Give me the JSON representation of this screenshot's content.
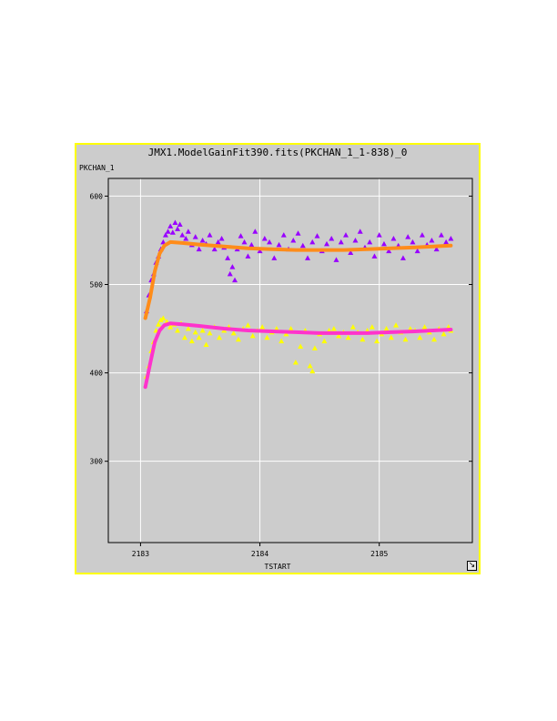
{
  "chart_data": {
    "type": "scatter",
    "title": "JMX1.ModelGainFit390.fits(PKCHAN_1_1-838)_0",
    "ylabel": "PKCHAN_1",
    "xlabel": "TSTART",
    "xlim": [
      2182.73,
      2185.78
    ],
    "ylim": [
      208,
      620
    ],
    "xticks": [
      2183,
      2184,
      2185
    ],
    "yticks": [
      300,
      400,
      500,
      600
    ],
    "grid": true,
    "series": [
      {
        "marker": "triangle",
        "color": "#9900ff",
        "points": [
          [
            2183.05,
            470
          ],
          [
            2183.07,
            488
          ],
          [
            2183.09,
            505
          ],
          [
            2183.11,
            512
          ],
          [
            2183.13,
            525
          ],
          [
            2183.15,
            532
          ],
          [
            2183.17,
            540
          ],
          [
            2183.19,
            548
          ],
          [
            2183.21,
            556
          ],
          [
            2183.23,
            560
          ],
          [
            2183.25,
            566
          ],
          [
            2183.27,
            559
          ],
          [
            2183.29,
            570
          ],
          [
            2183.31,
            563
          ],
          [
            2183.33,
            568
          ],
          [
            2183.35,
            556
          ],
          [
            2183.38,
            552
          ],
          [
            2183.4,
            560
          ],
          [
            2183.43,
            545
          ],
          [
            2183.46,
            554
          ],
          [
            2183.49,
            540
          ],
          [
            2183.52,
            550
          ],
          [
            2183.55,
            546
          ],
          [
            2183.58,
            556
          ],
          [
            2183.62,
            540
          ],
          [
            2183.65,
            548
          ],
          [
            2183.68,
            552
          ],
          [
            2183.7,
            542
          ],
          [
            2183.73,
            530
          ],
          [
            2183.75,
            512
          ],
          [
            2183.77,
            520
          ],
          [
            2183.79,
            505
          ],
          [
            2183.81,
            540
          ],
          [
            2183.84,
            555
          ],
          [
            2183.87,
            548
          ],
          [
            2183.9,
            532
          ],
          [
            2183.93,
            545
          ],
          [
            2183.96,
            560
          ],
          [
            2184.0,
            538
          ],
          [
            2184.04,
            552
          ],
          [
            2184.08,
            548
          ],
          [
            2184.12,
            530
          ],
          [
            2184.16,
            545
          ],
          [
            2184.2,
            556
          ],
          [
            2184.24,
            540
          ],
          [
            2184.28,
            550
          ],
          [
            2184.32,
            558
          ],
          [
            2184.36,
            544
          ],
          [
            2184.4,
            530
          ],
          [
            2184.44,
            548
          ],
          [
            2184.48,
            555
          ],
          [
            2184.52,
            538
          ],
          [
            2184.56,
            546
          ],
          [
            2184.6,
            552
          ],
          [
            2184.64,
            528
          ],
          [
            2184.68,
            548
          ],
          [
            2184.72,
            556
          ],
          [
            2184.76,
            536
          ],
          [
            2184.8,
            550
          ],
          [
            2184.84,
            560
          ],
          [
            2184.88,
            542
          ],
          [
            2184.92,
            548
          ],
          [
            2184.96,
            532
          ],
          [
            2185.0,
            556
          ],
          [
            2185.04,
            546
          ],
          [
            2185.08,
            538
          ],
          [
            2185.12,
            552
          ],
          [
            2185.16,
            544
          ],
          [
            2185.2,
            530
          ],
          [
            2185.24,
            554
          ],
          [
            2185.28,
            548
          ],
          [
            2185.32,
            538
          ],
          [
            2185.36,
            556
          ],
          [
            2185.4,
            545
          ],
          [
            2185.44,
            550
          ],
          [
            2185.48,
            540
          ],
          [
            2185.52,
            556
          ],
          [
            2185.56,
            548
          ],
          [
            2185.6,
            552
          ]
        ]
      },
      {
        "marker": "triangle",
        "color": "#ffff00",
        "points": [
          [
            2183.05,
            396
          ],
          [
            2183.07,
            408
          ],
          [
            2183.09,
            425
          ],
          [
            2183.11,
            435
          ],
          [
            2183.13,
            448
          ],
          [
            2183.15,
            455
          ],
          [
            2183.17,
            460
          ],
          [
            2183.19,
            462
          ],
          [
            2183.22,
            458
          ],
          [
            2183.25,
            452
          ],
          [
            2183.28,
            455
          ],
          [
            2183.31,
            448
          ],
          [
            2183.34,
            456
          ],
          [
            2183.37,
            440
          ],
          [
            2183.4,
            450
          ],
          [
            2183.43,
            436
          ],
          [
            2183.46,
            446
          ],
          [
            2183.49,
            440
          ],
          [
            2183.52,
            448
          ],
          [
            2183.55,
            432
          ],
          [
            2183.58,
            445
          ],
          [
            2183.62,
            452
          ],
          [
            2183.66,
            440
          ],
          [
            2183.7,
            448
          ],
          [
            2183.74,
            452
          ],
          [
            2183.78,
            445
          ],
          [
            2183.82,
            438
          ],
          [
            2183.86,
            450
          ],
          [
            2183.9,
            454
          ],
          [
            2183.94,
            442
          ],
          [
            2183.98,
            448
          ],
          [
            2184.02,
            452
          ],
          [
            2184.06,
            440
          ],
          [
            2184.1,
            446
          ],
          [
            2184.14,
            450
          ],
          [
            2184.18,
            436
          ],
          [
            2184.22,
            444
          ],
          [
            2184.26,
            450
          ],
          [
            2184.3,
            412
          ],
          [
            2184.34,
            430
          ],
          [
            2184.38,
            448
          ],
          [
            2184.42,
            408
          ],
          [
            2184.44,
            402
          ],
          [
            2184.46,
            428
          ],
          [
            2184.5,
            444
          ],
          [
            2184.54,
            436
          ],
          [
            2184.58,
            448
          ],
          [
            2184.62,
            450
          ],
          [
            2184.66,
            442
          ],
          [
            2184.7,
            446
          ],
          [
            2184.74,
            440
          ],
          [
            2184.78,
            452
          ],
          [
            2184.82,
            446
          ],
          [
            2184.86,
            438
          ],
          [
            2184.9,
            448
          ],
          [
            2184.94,
            452
          ],
          [
            2184.98,
            436
          ],
          [
            2185.02,
            444
          ],
          [
            2185.06,
            450
          ],
          [
            2185.1,
            440
          ],
          [
            2185.14,
            454
          ],
          [
            2185.18,
            446
          ],
          [
            2185.22,
            438
          ],
          [
            2185.26,
            450
          ],
          [
            2185.3,
            448
          ],
          [
            2185.34,
            440
          ],
          [
            2185.38,
            452
          ],
          [
            2185.42,
            446
          ],
          [
            2185.46,
            438
          ],
          [
            2185.5,
            450
          ],
          [
            2185.54,
            444
          ],
          [
            2185.58,
            452
          ],
          [
            2185.6,
            448
          ]
        ]
      },
      {
        "marker": "line",
        "color": "#ff8c1a",
        "points": [
          [
            2183.04,
            462
          ],
          [
            2183.08,
            485
          ],
          [
            2183.12,
            515
          ],
          [
            2183.16,
            535
          ],
          [
            2183.2,
            544
          ],
          [
            2183.25,
            548
          ],
          [
            2183.35,
            547
          ],
          [
            2183.5,
            545
          ],
          [
            2183.7,
            543
          ],
          [
            2183.9,
            541
          ],
          [
            2184.1,
            540
          ],
          [
            2184.3,
            539
          ],
          [
            2184.5,
            539
          ],
          [
            2184.7,
            539
          ],
          [
            2184.9,
            540
          ],
          [
            2185.1,
            541
          ],
          [
            2185.3,
            542
          ],
          [
            2185.45,
            543
          ],
          [
            2185.6,
            544
          ]
        ]
      },
      {
        "marker": "line",
        "color": "#ff33cc",
        "points": [
          [
            2183.04,
            384
          ],
          [
            2183.08,
            410
          ],
          [
            2183.12,
            435
          ],
          [
            2183.16,
            448
          ],
          [
            2183.2,
            454
          ],
          [
            2183.25,
            456
          ],
          [
            2183.35,
            455
          ],
          [
            2183.5,
            453
          ],
          [
            2183.7,
            450
          ],
          [
            2183.9,
            448
          ],
          [
            2184.1,
            447
          ],
          [
            2184.3,
            446
          ],
          [
            2184.5,
            445
          ],
          [
            2184.7,
            445
          ],
          [
            2184.9,
            445
          ],
          [
            2185.1,
            446
          ],
          [
            2185.3,
            447
          ],
          [
            2185.45,
            448
          ],
          [
            2185.6,
            449
          ]
        ]
      }
    ]
  }
}
